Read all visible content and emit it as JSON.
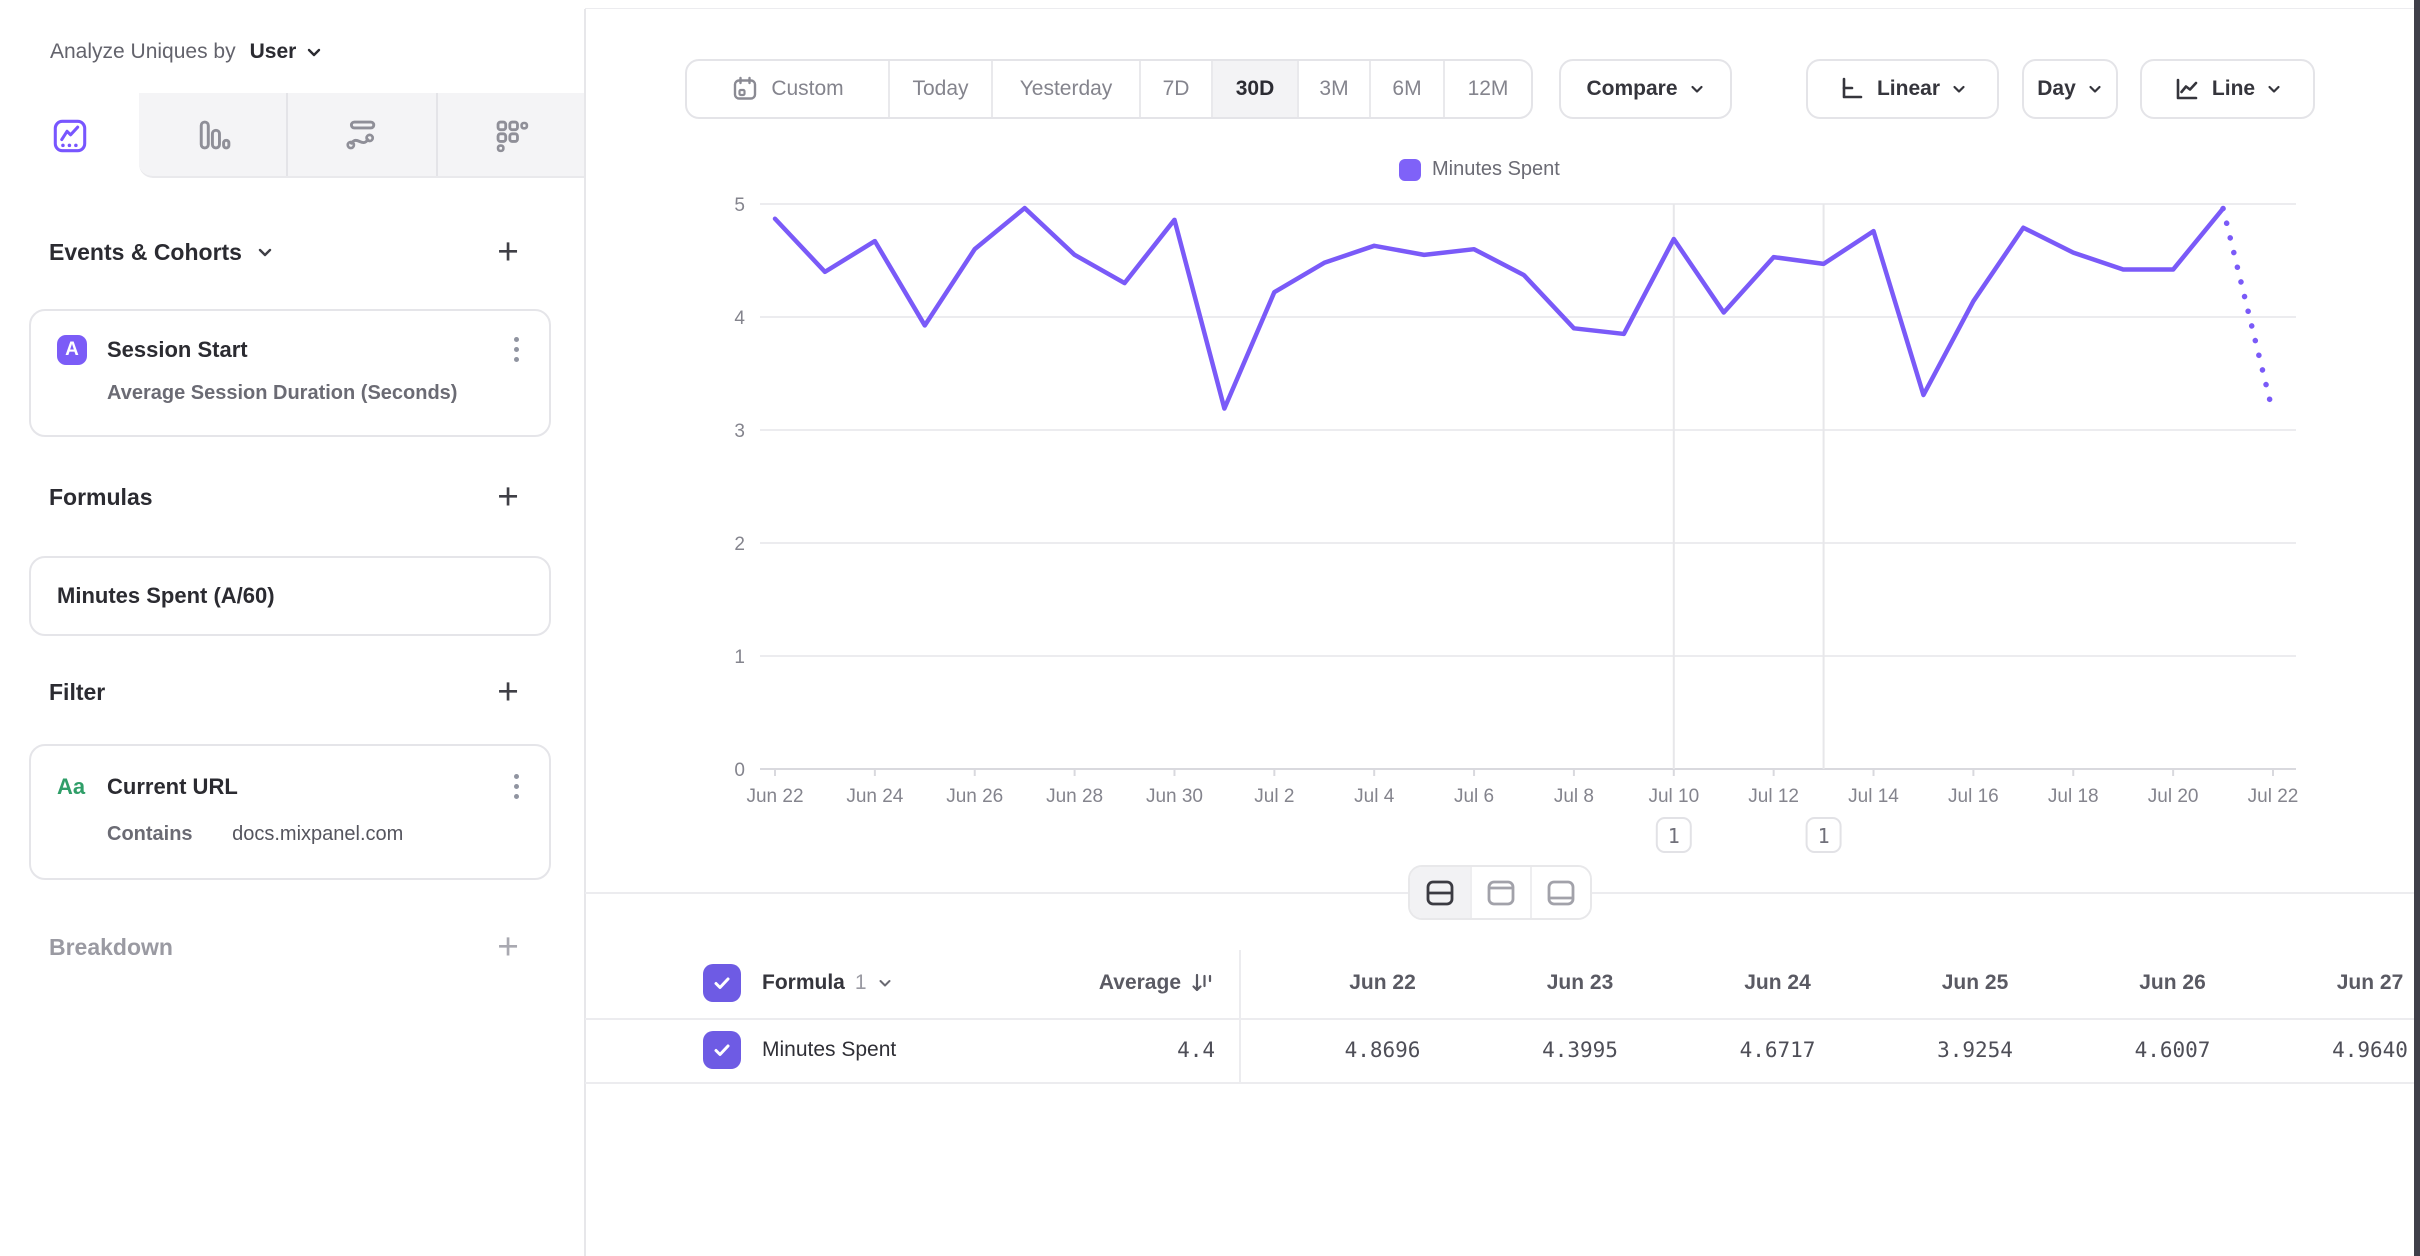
{
  "sidebar": {
    "analyze_label": "Analyze Uniques by",
    "analyze_value": "User",
    "tabs": [
      {
        "icon": "line-chart-icon",
        "active": true
      },
      {
        "icon": "bar-chart-icon",
        "active": false
      },
      {
        "icon": "flows-icon",
        "active": false
      },
      {
        "icon": "retention-icon",
        "active": false
      }
    ],
    "events": {
      "title": "Events & Cohorts",
      "items": [
        {
          "badge": "A",
          "title": "Session Start",
          "subtitle": "Average Session Duration (Seconds)"
        }
      ]
    },
    "formulas": {
      "title": "Formulas",
      "items": [
        {
          "title": "Minutes Spent (A/60)"
        }
      ]
    },
    "filter": {
      "title": "Filter",
      "items": [
        {
          "badge": "Aa",
          "title": "Current URL",
          "operator": "Contains",
          "value": "docs.mixpanel.com"
        }
      ]
    },
    "breakdown": {
      "title": "Breakdown"
    }
  },
  "toolbar": {
    "date_ranges": [
      "Custom",
      "Today",
      "Yesterday",
      "7D",
      "30D",
      "3M",
      "6M",
      "12M"
    ],
    "active_range": "30D",
    "compare_label": "Compare",
    "scale_label": "Linear",
    "interval_label": "Day",
    "chart_type_label": "Line"
  },
  "chart_data": {
    "type": "line",
    "legend_position": "top-center",
    "grid": "horizontal",
    "ylim": [
      0,
      5
    ],
    "yticks": [
      0,
      1,
      2,
      3,
      4,
      5
    ],
    "x_tick_every": 2,
    "last_segment_dotted": true,
    "categories": [
      "Jun 22",
      "Jun 23",
      "Jun 24",
      "Jun 25",
      "Jun 26",
      "Jun 27",
      "Jun 28",
      "Jun 29",
      "Jun 30",
      "Jul 1",
      "Jul 2",
      "Jul 3",
      "Jul 4",
      "Jul 5",
      "Jul 6",
      "Jul 7",
      "Jul 8",
      "Jul 9",
      "Jul 10",
      "Jul 11",
      "Jul 12",
      "Jul 13",
      "Jul 14",
      "Jul 15",
      "Jul 16",
      "Jul 17",
      "Jul 18",
      "Jul 19",
      "Jul 20",
      "Jul 21",
      "Jul 22"
    ],
    "series": [
      {
        "name": "Minutes Spent",
        "color": "#7a5af8",
        "values": [
          4.8696,
          4.3995,
          4.6717,
          3.9254,
          4.6007,
          4.964,
          4.55,
          4.3,
          4.86,
          3.19,
          4.22,
          4.48,
          4.63,
          4.55,
          4.6,
          4.37,
          3.9,
          3.85,
          4.69,
          4.04,
          4.53,
          4.47,
          4.76,
          3.31,
          4.14,
          4.79,
          4.57,
          4.42,
          4.42,
          4.96,
          3.15
        ]
      }
    ],
    "annotations": [
      {
        "category": "Jul 10",
        "label": "1"
      },
      {
        "category": "Jul 13",
        "label": "1"
      }
    ]
  },
  "view_toggle": {
    "options": [
      "split-view",
      "chart-view",
      "table-view"
    ],
    "active": "split-view"
  },
  "table": {
    "group_label": "Formula",
    "group_index": "1",
    "average_label": "Average",
    "columns": [
      "Jun 22",
      "Jun 23",
      "Jun 24",
      "Jun 25",
      "Jun 26",
      "Jun 27"
    ],
    "rows": [
      {
        "label": "Minutes Spent",
        "checked": true,
        "average": "4.4",
        "values": [
          "4.8696",
          "4.3995",
          "4.6717",
          "3.9254",
          "4.6007",
          "4.9640"
        ]
      }
    ]
  },
  "colors": {
    "accent": "#7856ff",
    "line": "#7a5af8",
    "green": "#2f9e68",
    "grid": "#ececef",
    "axis": "#d9d9de"
  }
}
